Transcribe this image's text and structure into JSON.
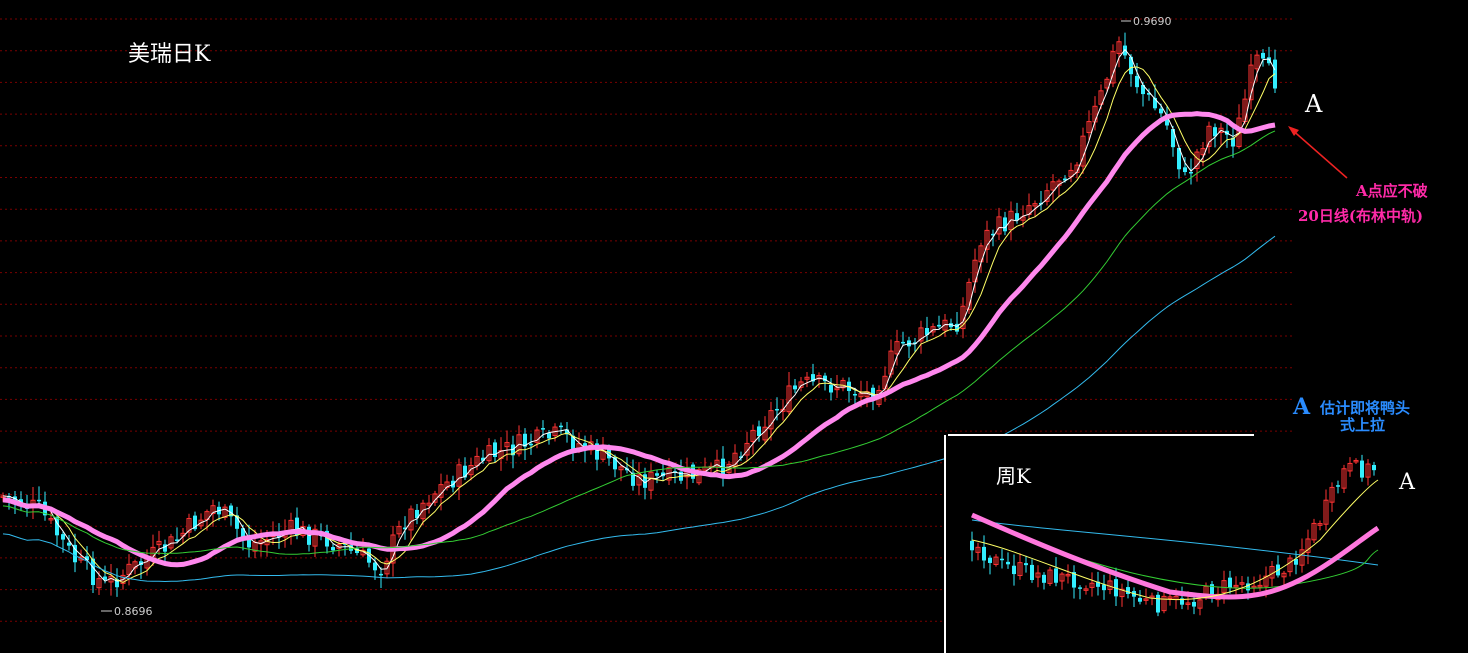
{
  "chart_data": [
    {
      "type": "candlestick",
      "title": "美瑞日K",
      "ylim": [
        0.86,
        0.975
      ],
      "markers": {
        "high": "0.9690",
        "low": "0.8696"
      },
      "grid": true,
      "series": [
        {
          "name": "",
          "color": "#ffffff"
        },
        {
          "name": "",
          "color": "#ffff66"
        },
        {
          "name": "",
          "color": "#ff88ee"
        },
        {
          "name": "",
          "color": "#33cc33"
        },
        {
          "name": "",
          "color": "#33bbee"
        }
      ]
    },
    {
      "type": "candlestick",
      "title": "周K",
      "grid": false
    }
  ],
  "annotations": {
    "main_point": "A",
    "weekly_point": "A",
    "note_line1": "A点应不破",
    "note_line2": "20日线(布林中轨)",
    "blue_marker": "A",
    "blue_line1": "估计即将鸭头",
    "blue_line2": "式上拉"
  },
  "colors": {
    "up": "#ff3333",
    "down": "#33eeff",
    "ma20": "#ff77dd",
    "annotation": "#ff2aa8",
    "blue_note": "#2a8cff",
    "grid": "#7a0000"
  }
}
